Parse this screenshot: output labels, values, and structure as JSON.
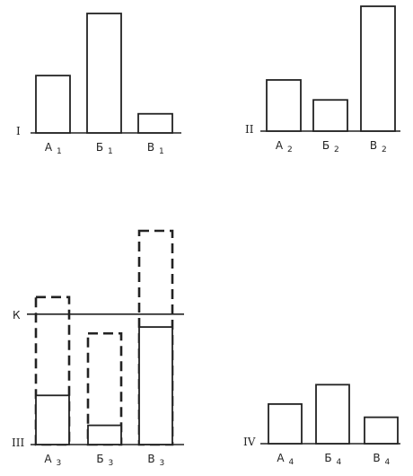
{
  "panels": [
    {
      "id": "I",
      "roman": "I",
      "bars": [
        {
          "letter": "А",
          "sub": "1",
          "value": 0.48
        },
        {
          "letter": "Б",
          "sub": "1",
          "value": 1.0
        },
        {
          "letter": "В",
          "sub": "1",
          "value": 0.16
        }
      ]
    },
    {
      "id": "II",
      "roman": "II",
      "bars": [
        {
          "letter": "А",
          "sub": "2",
          "value": 0.41
        },
        {
          "letter": "Б",
          "sub": "2",
          "value": 0.25
        },
        {
          "letter": "В",
          "sub": "2",
          "value": 1.0
        }
      ]
    },
    {
      "id": "III",
      "roman": "III",
      "threshold_label": "К",
      "threshold": 0.61,
      "bars": [
        {
          "letter": "А",
          "sub": "3",
          "value": 0.23,
          "potential": 0.69
        },
        {
          "letter": "Б",
          "sub": "3",
          "value": 0.09,
          "potential": 0.52
        },
        {
          "letter": "В",
          "sub": "3",
          "value": 0.55,
          "potential": 1.0
        }
      ]
    },
    {
      "id": "IV",
      "roman": "IV",
      "bars": [
        {
          "letter": "А",
          "sub": "4",
          "value": 0.45
        },
        {
          "letter": "Б",
          "sub": "4",
          "value": 0.67
        },
        {
          "letter": "В",
          "sub": "4",
          "value": 0.3
        }
      ]
    }
  ]
}
